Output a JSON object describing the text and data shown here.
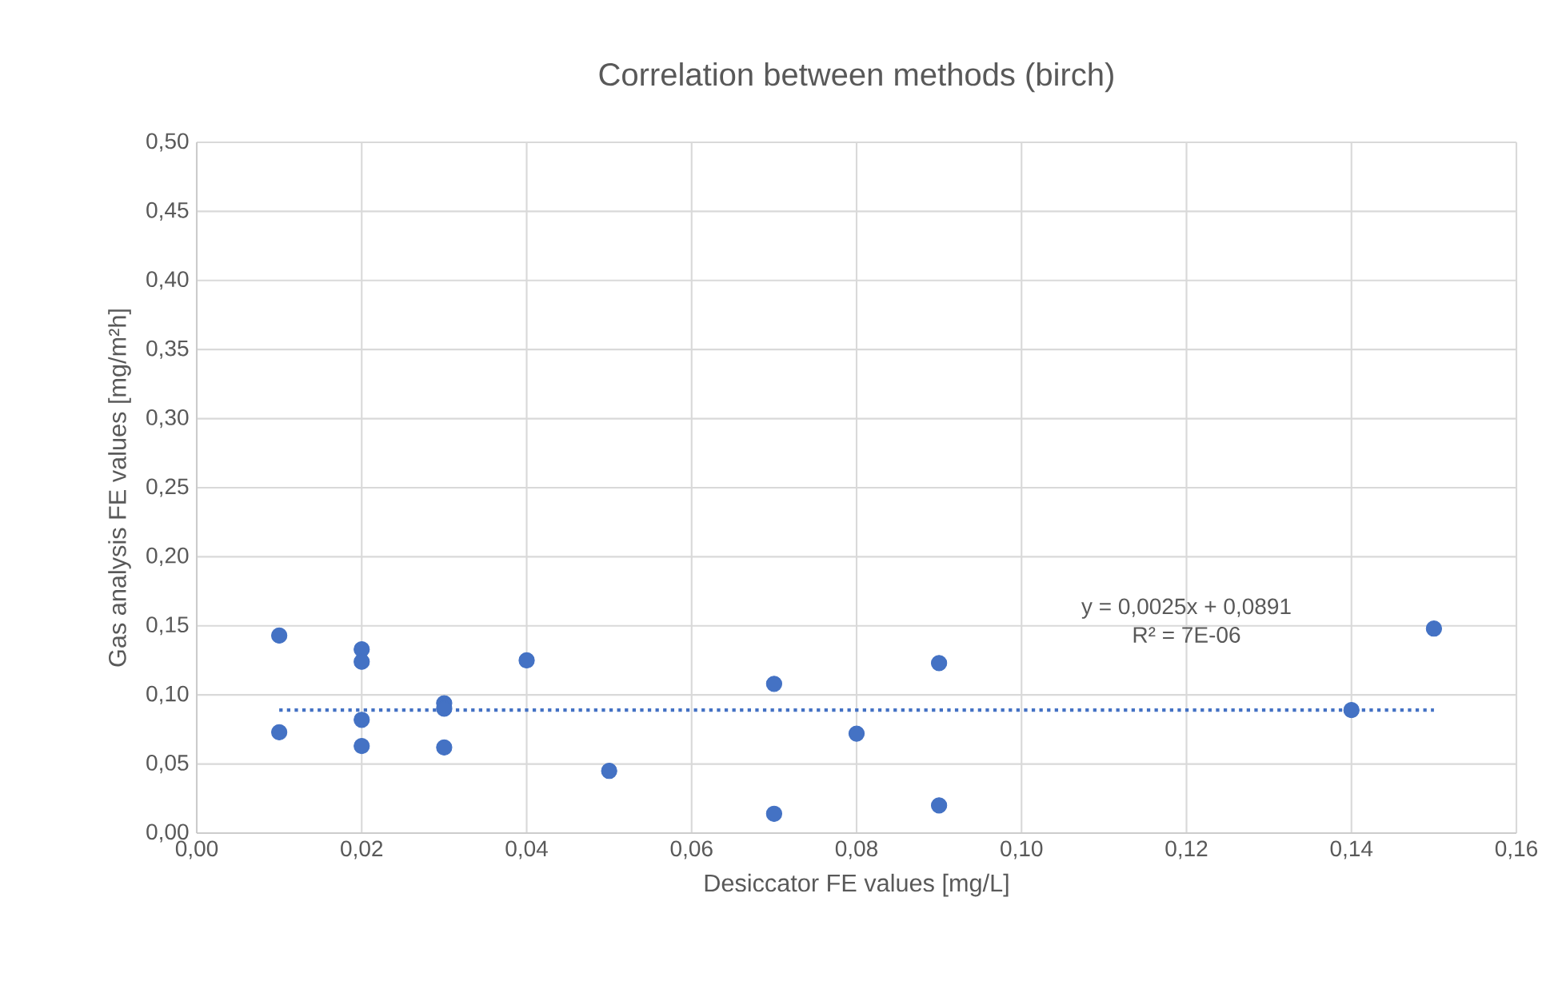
{
  "chart_data": {
    "type": "scatter",
    "title": "Correlation between methods (birch)",
    "xlabel": "Desiccator FE values [mg/L]",
    "ylabel": "Gas analysis FE values [mg/m²h]",
    "series": [
      {
        "color": "#4472c4",
        "marker": "circle",
        "x": [
          0.01,
          0.01,
          0.02,
          0.02,
          0.02,
          0.02,
          0.03,
          0.03,
          0.03,
          0.04,
          0.05,
          0.07,
          0.07,
          0.08,
          0.09,
          0.09,
          0.14,
          0.15
        ],
        "values": [
          0.143,
          0.073,
          0.133,
          0.124,
          0.082,
          0.063,
          0.094,
          0.09,
          0.062,
          0.125,
          0.045,
          0.108,
          0.014,
          0.072,
          0.123,
          0.02,
          0.089,
          0.148
        ]
      },
      {
        "type": "line",
        "color": "#4472c4",
        "line_style": "dotted",
        "marker": "none",
        "x": [
          0.01,
          0.15
        ],
        "values": [
          0.089,
          0.089
        ]
      }
    ],
    "annotations": [
      "y = 0,0025x + 0,0891",
      "R² = 7E-06"
    ],
    "xlim": [
      0,
      0.16
    ],
    "xticks": [
      {
        "value": 0,
        "label": "0,00"
      },
      {
        "value": 0.02,
        "label": "0,02"
      },
      {
        "value": 0.04,
        "label": "0,04"
      },
      {
        "value": 0.06,
        "label": "0,06"
      },
      {
        "value": 0.08,
        "label": "0,08"
      },
      {
        "value": 0.1,
        "label": "0,10"
      },
      {
        "value": 0.12,
        "label": "0,12"
      },
      {
        "value": 0.14,
        "label": "0,14"
      },
      {
        "value": 0.16,
        "label": "0,16"
      }
    ],
    "ylim": [
      0,
      0.5
    ],
    "yticks": [
      {
        "value": 0,
        "label": "0,00"
      },
      {
        "value": 0.05,
        "label": "0,05"
      },
      {
        "value": 0.1,
        "label": "0,10"
      },
      {
        "value": 0.15,
        "label": "0,15"
      },
      {
        "value": 0.2,
        "label": "0,20"
      },
      {
        "value": 0.25,
        "label": "0,25"
      },
      {
        "value": 0.3,
        "label": "0,30"
      },
      {
        "value": 0.35,
        "label": "0,35"
      },
      {
        "value": 0.4,
        "label": "0,40"
      },
      {
        "value": 0.45,
        "label": "0,45"
      },
      {
        "value": 0.5,
        "label": "0,50"
      }
    ],
    "grid": true
  }
}
